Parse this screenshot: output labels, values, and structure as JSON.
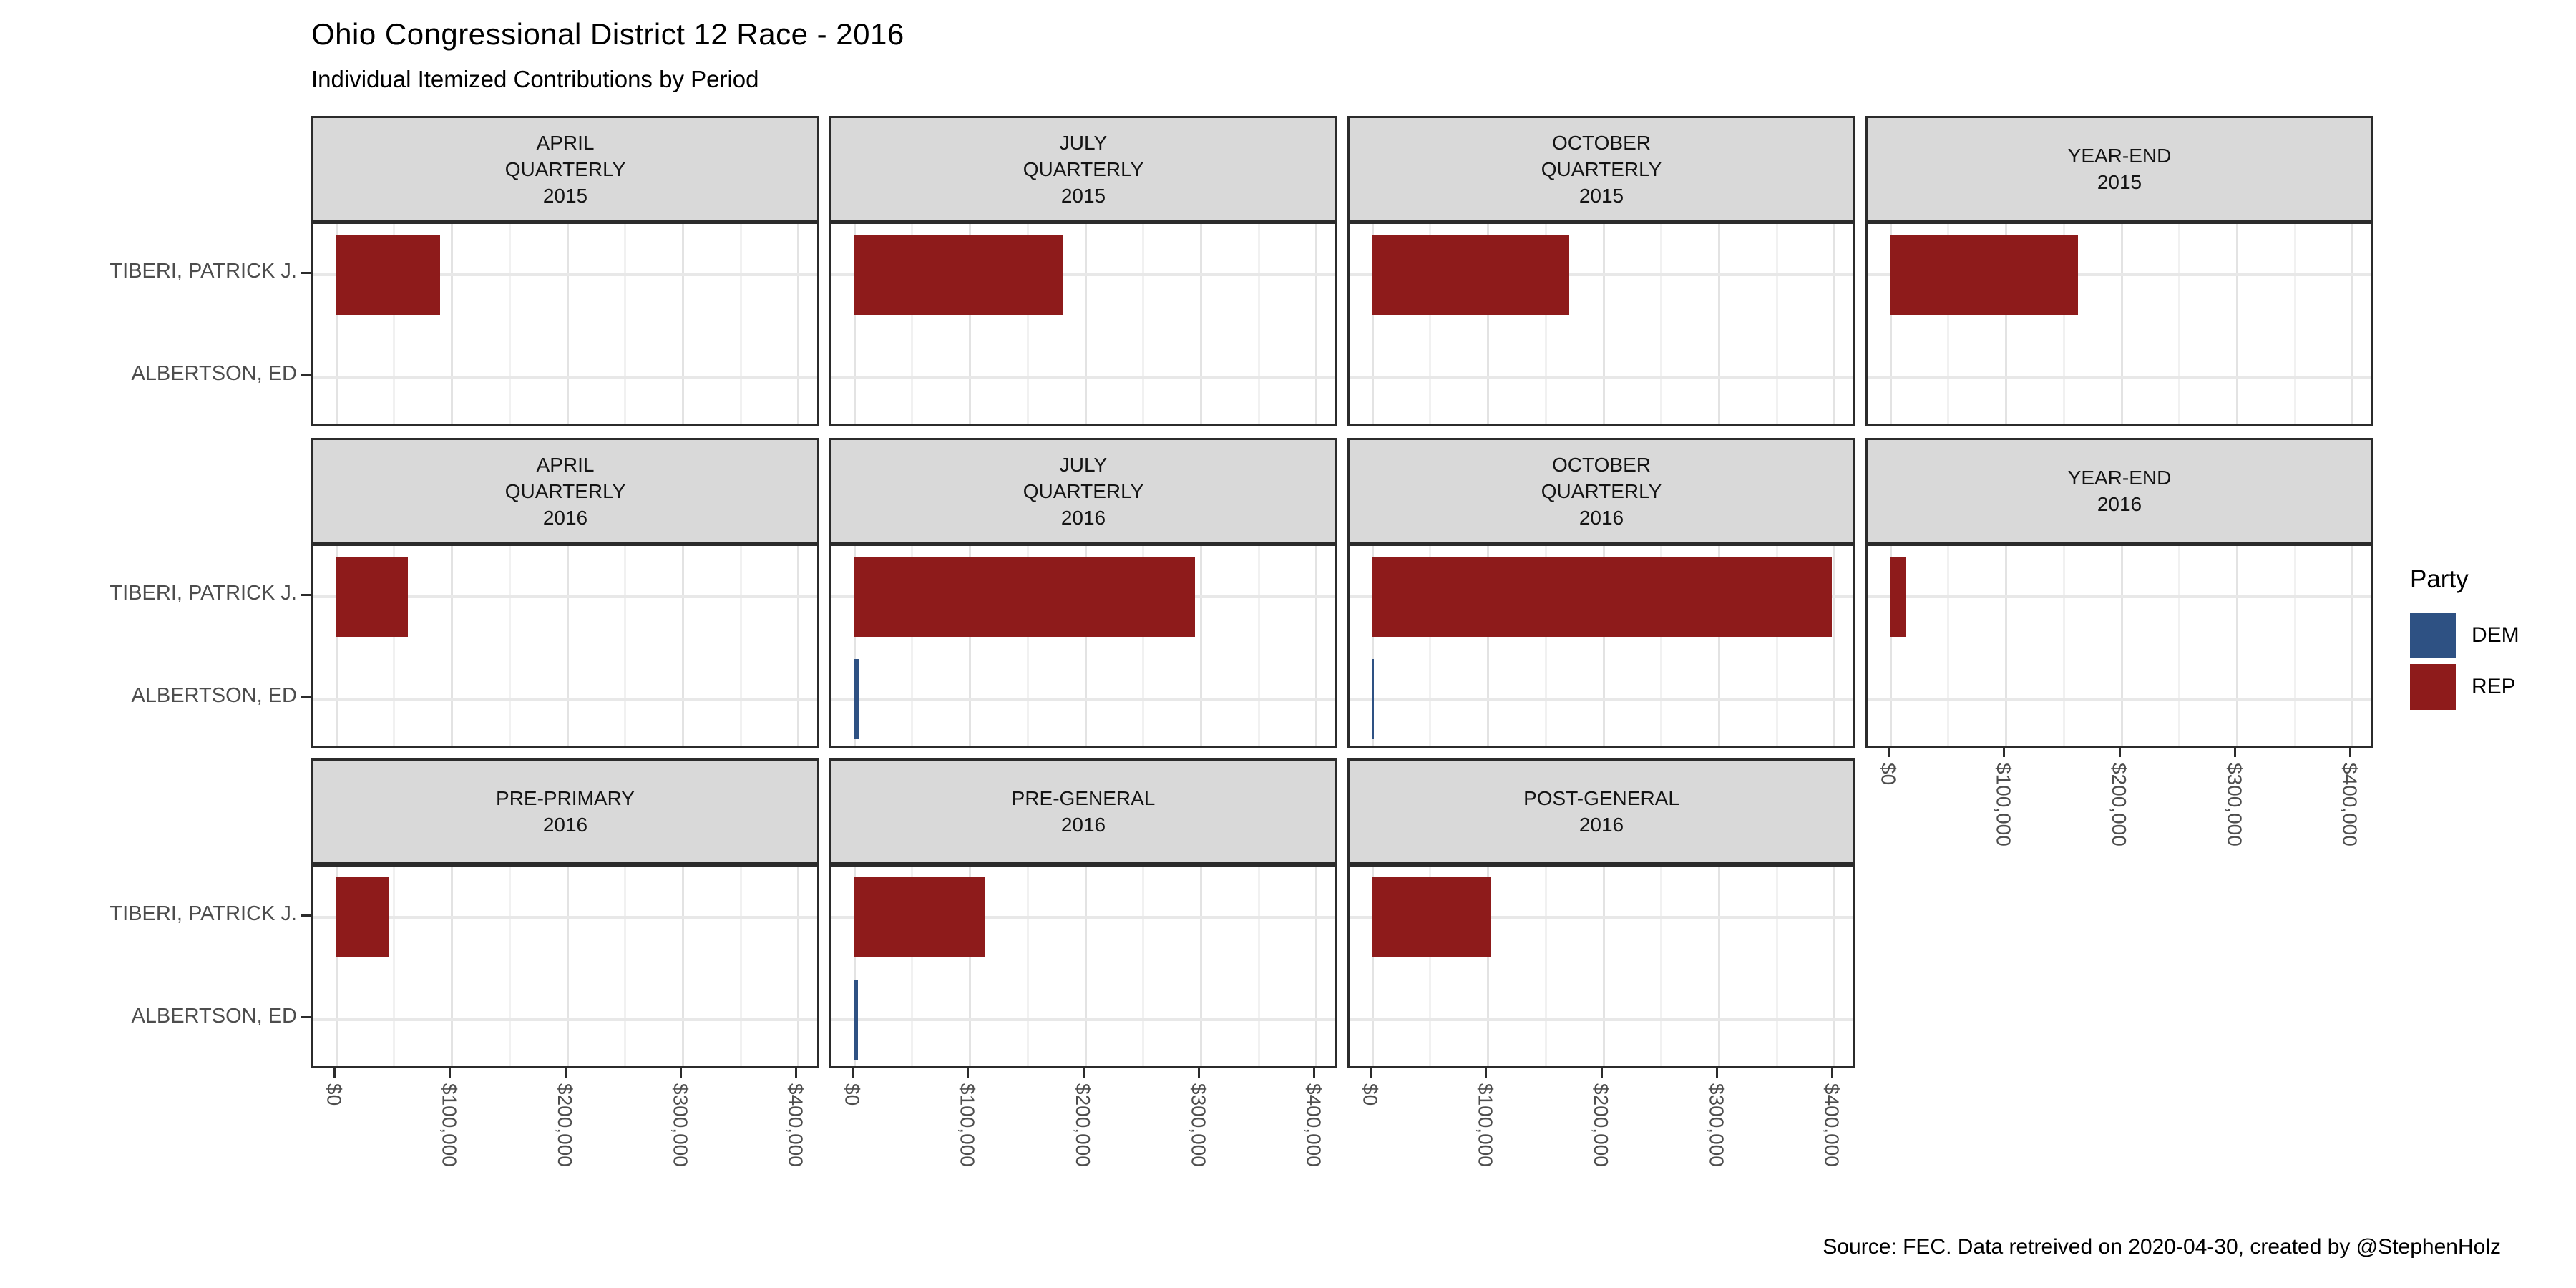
{
  "title": "Ohio Congressional District 12 Race - 2016",
  "subtitle": "Individual Itemized Contributions by Period",
  "caption": "Source: FEC. Data retreived on 2020-04-30, created by @StephenHolz",
  "legend": {
    "title": "Party",
    "entries": [
      {
        "label": "DEM",
        "color": "#2E5183"
      },
      {
        "label": "REP",
        "color": "#8E1B1B"
      }
    ]
  },
  "chart_data": {
    "type": "bar",
    "orientation": "horizontal",
    "title": "Ohio Congressional District 12 Race - 2016",
    "subtitle": "Individual Itemized Contributions by Period",
    "categories": [
      "TIBERI, PATRICK J.",
      "ALBERTSON, ED"
    ],
    "party_colors": {
      "DEM": "#2E5183",
      "REP": "#8E1B1B"
    },
    "x_ticks": [
      "$0",
      "$100,000",
      "$200,000",
      "$300,000",
      "$400,000"
    ],
    "x_tick_values": [
      0,
      100000,
      200000,
      300000,
      400000
    ],
    "x_minor_values": [
      50000,
      150000,
      250000,
      350000
    ],
    "xlim": [
      -20000,
      420000
    ],
    "grid": true,
    "legend_position": "right",
    "facets": [
      {
        "strip_lines": [
          "APRIL",
          "QUARTERLY",
          "2015"
        ],
        "row": 0,
        "col": 0,
        "x_axis": false,
        "bars": [
          {
            "party": "REP",
            "candidate": "TIBERI, PATRICK J.",
            "amount": 90000
          }
        ]
      },
      {
        "strip_lines": [
          "JULY",
          "QUARTERLY",
          "2015"
        ],
        "row": 0,
        "col": 1,
        "x_axis": false,
        "bars": [
          {
            "party": "REP",
            "candidate": "TIBERI, PATRICK J.",
            "amount": 180000
          }
        ]
      },
      {
        "strip_lines": [
          "OCTOBER",
          "QUARTERLY",
          "2015"
        ],
        "row": 0,
        "col": 2,
        "x_axis": false,
        "bars": [
          {
            "party": "REP",
            "candidate": "TIBERI, PATRICK J.",
            "amount": 170000
          }
        ]
      },
      {
        "strip_lines": [
          "YEAR-END",
          "2015"
        ],
        "row": 0,
        "col": 3,
        "x_axis": false,
        "bars": [
          {
            "party": "REP",
            "candidate": "TIBERI, PATRICK J.",
            "amount": 162000
          }
        ]
      },
      {
        "strip_lines": [
          "APRIL",
          "QUARTERLY",
          "2016"
        ],
        "row": 1,
        "col": 0,
        "x_axis": false,
        "bars": [
          {
            "party": "REP",
            "candidate": "TIBERI, PATRICK J.",
            "amount": 62000
          }
        ]
      },
      {
        "strip_lines": [
          "JULY",
          "QUARTERLY",
          "2016"
        ],
        "row": 1,
        "col": 1,
        "x_axis": false,
        "bars": [
          {
            "party": "REP",
            "candidate": "TIBERI, PATRICK J.",
            "amount": 295000
          },
          {
            "party": "DEM",
            "candidate": "ALBERTSON, ED",
            "amount": 4000
          }
        ]
      },
      {
        "strip_lines": [
          "OCTOBER",
          "QUARTERLY",
          "2016"
        ],
        "row": 1,
        "col": 2,
        "x_axis": false,
        "bars": [
          {
            "party": "REP",
            "candidate": "TIBERI, PATRICK J.",
            "amount": 398000
          },
          {
            "party": "DEM",
            "candidate": "ALBERTSON, ED",
            "amount": 1000
          }
        ]
      },
      {
        "strip_lines": [
          "YEAR-END",
          "2016"
        ],
        "row": 1,
        "col": 3,
        "x_axis": true,
        "bars": [
          {
            "party": "REP",
            "candidate": "TIBERI, PATRICK J.",
            "amount": 13000
          }
        ]
      },
      {
        "strip_lines": [
          "PRE-PRIMARY",
          "2016"
        ],
        "row": 2,
        "col": 0,
        "x_axis": true,
        "bars": [
          {
            "party": "REP",
            "candidate": "TIBERI, PATRICK J.",
            "amount": 45000
          }
        ]
      },
      {
        "strip_lines": [
          "PRE-GENERAL",
          "2016"
        ],
        "row": 2,
        "col": 1,
        "x_axis": true,
        "bars": [
          {
            "party": "REP",
            "candidate": "TIBERI, PATRICK J.",
            "amount": 113000
          },
          {
            "party": "DEM",
            "candidate": "ALBERTSON, ED",
            "amount": 3000
          }
        ]
      },
      {
        "strip_lines": [
          "POST-GENERAL",
          "2016"
        ],
        "row": 2,
        "col": 2,
        "x_axis": true,
        "bars": [
          {
            "party": "REP",
            "candidate": "TIBERI, PATRICK J.",
            "amount": 102000
          }
        ]
      }
    ]
  }
}
